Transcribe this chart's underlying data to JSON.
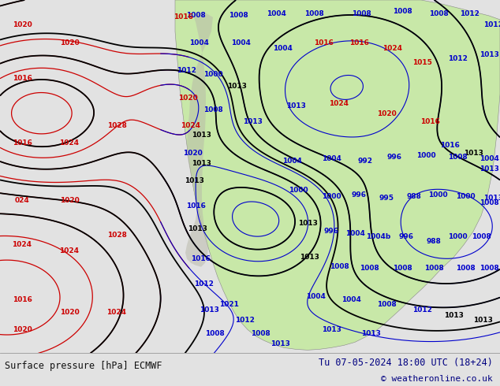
{
  "title_left": "Surface pressure [hPa] ECMWF",
  "title_right": "Tu 07-05-2024 18:00 UTC (18+24)",
  "copyright": "© weatheronline.co.uk",
  "bg_color": "#e2e2e2",
  "land_color": "#c8e8a8",
  "ocean_color": "#e2e2e2",
  "mountain_color": "#b0b0a0",
  "footer_bg": "#d8d8d8",
  "text_color_dark": "#111111",
  "text_color_blue": "#000080",
  "contour_blue": "#0000cc",
  "contour_red": "#cc0000",
  "contour_black": "#000000",
  "footer_fontsize": 8.5,
  "fig_width": 6.34,
  "fig_height": 4.9
}
